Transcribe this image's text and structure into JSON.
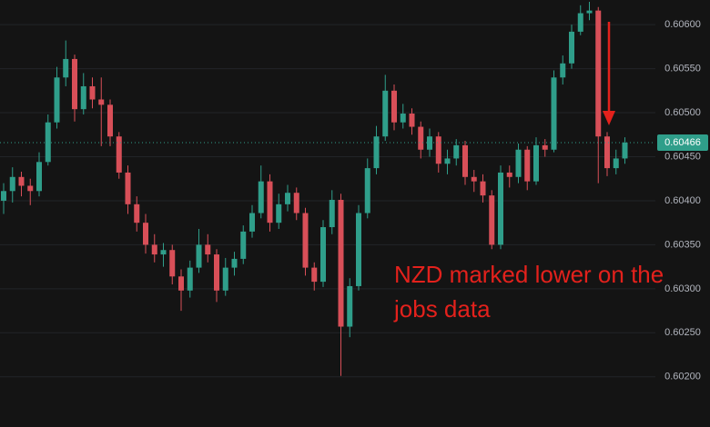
{
  "chart_data": {
    "type": "candlestick",
    "up_color": "#2f9e8a",
    "down_color": "#d84f58",
    "annotation": "NZD marked lower on the jobs data",
    "last_price": 0.60466,
    "ylim": [
      0.60143,
      0.60628
    ],
    "yticks": [
      {
        "value": 0.602,
        "label": "0.60200"
      },
      {
        "value": 0.6025,
        "label": "0.60250"
      },
      {
        "value": 0.603,
        "label": "0.60300"
      },
      {
        "value": 0.6035,
        "label": "0.60350"
      },
      {
        "value": 0.604,
        "label": "0.60400"
      },
      {
        "value": 0.6045,
        "label": "0.60450"
      },
      {
        "value": 0.605,
        "label": "0.60500"
      },
      {
        "value": 0.6055,
        "label": "0.60550"
      },
      {
        "value": 0.606,
        "label": "0.60600"
      }
    ],
    "grid": true,
    "open": [
      0.604,
      0.60411,
      0.60427,
      0.60417,
      0.60411,
      0.60444,
      0.60489,
      0.6054,
      0.60561,
      0.60504,
      0.6053,
      0.60515,
      0.60509,
      0.60473,
      0.60432,
      0.60396,
      0.60375,
      0.6035,
      0.60339,
      0.60344,
      0.60314,
      0.60298,
      0.60324,
      0.6035,
      0.60339,
      0.60298,
      0.60324,
      0.60334,
      0.60365,
      0.60386,
      0.60422,
      0.60375,
      0.60396,
      0.60409,
      0.60386,
      0.60324,
      0.60308,
      0.6037,
      0.60401,
      0.60257,
      0.60303,
      0.60386,
      0.60437,
      0.60473,
      0.60525,
      0.60489,
      0.60499,
      0.60484,
      0.60458,
      0.60473,
      0.60442,
      0.60448,
      0.60463,
      0.60427,
      0.60422,
      0.60406,
      0.6035,
      0.60432,
      0.60427,
      0.60458,
      0.60422,
      0.60463,
      0.60458,
      0.6054,
      0.60556,
      0.60592,
      0.60613,
      0.60616,
      0.60473,
      0.60437,
      0.60448
    ],
    "high": [
      0.6042,
      0.60438,
      0.60433,
      0.60425,
      0.60455,
      0.60498,
      0.60552,
      0.60582,
      0.60566,
      0.60545,
      0.6054,
      0.6054,
      0.60515,
      0.60478,
      0.6044,
      0.60405,
      0.60385,
      0.60362,
      0.60352,
      0.6035,
      0.60322,
      0.60332,
      0.60368,
      0.60362,
      0.60345,
      0.60335,
      0.60342,
      0.60372,
      0.60395,
      0.6044,
      0.6043,
      0.60408,
      0.60418,
      0.60415,
      0.60392,
      0.6033,
      0.60378,
      0.60412,
      0.60408,
      0.60312,
      0.60395,
      0.60448,
      0.60485,
      0.60543,
      0.60532,
      0.6051,
      0.60505,
      0.6049,
      0.60482,
      0.60478,
      0.60458,
      0.6047,
      0.60468,
      0.60435,
      0.6043,
      0.60412,
      0.6044,
      0.6044,
      0.60465,
      0.60462,
      0.60472,
      0.6047,
      0.60548,
      0.60565,
      0.606,
      0.60622,
      0.60626,
      0.6062,
      0.60478,
      0.60458,
      0.60472
    ],
    "low": [
      0.60385,
      0.60398,
      0.60405,
      0.60395,
      0.60405,
      0.6044,
      0.60482,
      0.6053,
      0.6049,
      0.60498,
      0.60505,
      0.60462,
      0.60462,
      0.60425,
      0.60385,
      0.60365,
      0.6034,
      0.6033,
      0.60325,
      0.60305,
      0.60275,
      0.6029,
      0.60318,
      0.6033,
      0.60285,
      0.60292,
      0.60315,
      0.60328,
      0.60358,
      0.6038,
      0.60365,
      0.60368,
      0.60388,
      0.60378,
      0.60315,
      0.60298,
      0.60302,
      0.60362,
      0.60201,
      0.60245,
      0.60298,
      0.6038,
      0.6043,
      0.60468,
      0.6048,
      0.60482,
      0.60475,
      0.60448,
      0.6045,
      0.60432,
      0.6043,
      0.6044,
      0.60418,
      0.6041,
      0.60398,
      0.60345,
      0.60345,
      0.60415,
      0.6042,
      0.60412,
      0.60418,
      0.6045,
      0.60455,
      0.60532,
      0.6055,
      0.60588,
      0.60605,
      0.6042,
      0.60428,
      0.6043,
      0.60442
    ],
    "close": [
      0.60411,
      0.60427,
      0.60417,
      0.60411,
      0.60444,
      0.60489,
      0.6054,
      0.60561,
      0.60504,
      0.6053,
      0.60515,
      0.60509,
      0.60473,
      0.60432,
      0.60396,
      0.60375,
      0.6035,
      0.60339,
      0.60344,
      0.60314,
      0.60298,
      0.60324,
      0.6035,
      0.60339,
      0.60298,
      0.60324,
      0.60334,
      0.60365,
      0.60386,
      0.60422,
      0.60375,
      0.60396,
      0.60409,
      0.60386,
      0.60324,
      0.60308,
      0.6037,
      0.60401,
      0.60257,
      0.60303,
      0.60386,
      0.60437,
      0.60473,
      0.60525,
      0.60489,
      0.60499,
      0.60484,
      0.60458,
      0.60473,
      0.60442,
      0.60448,
      0.60463,
      0.60427,
      0.60422,
      0.60406,
      0.6035,
      0.60432,
      0.60427,
      0.60458,
      0.60422,
      0.60463,
      0.60458,
      0.6054,
      0.60556,
      0.60592,
      0.60613,
      0.60616,
      0.60473,
      0.60437,
      0.60448,
      0.60466
    ]
  }
}
